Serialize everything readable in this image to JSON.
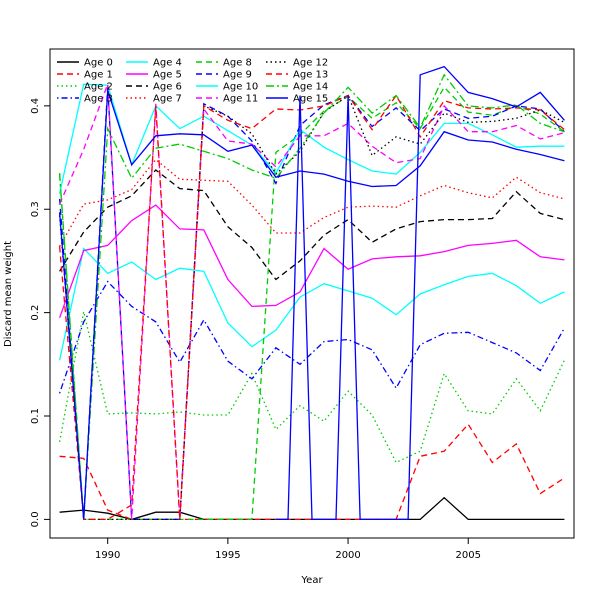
{
  "chart_data": {
    "type": "line",
    "title": "",
    "xlabel": "Year",
    "ylabel": "Discard mean weight",
    "xlim": [
      1987.6,
      2009.4
    ],
    "ylim": [
      -0.018,
      0.455
    ],
    "x_ticks": [
      1990,
      1995,
      2000,
      2005
    ],
    "y_ticks": [
      0.0,
      0.1,
      0.2,
      0.3,
      0.4
    ],
    "y_tick_labels": [
      "0.0",
      "0.1",
      "0.2",
      "0.3",
      "0.4"
    ],
    "grid": false,
    "legend_position": "top-left",
    "x": [
      1988,
      1989,
      1990,
      1991,
      1992,
      1993,
      1994,
      1995,
      1996,
      1997,
      1998,
      1999,
      2000,
      2001,
      2002,
      2003,
      2004,
      2005,
      2006,
      2007,
      2008,
      2009
    ],
    "series": [
      {
        "name": "Age 0",
        "color": "#000000",
        "dash": "solid",
        "values": [
          0.007,
          0.009,
          0.006,
          0.0,
          0.007,
          0.007,
          0.0,
          0.0,
          0.0,
          0.0,
          0.0,
          0.0,
          0.0,
          0.0,
          0.0,
          0.0,
          0.021,
          0.0,
          0.0,
          0.0,
          0.0,
          0.0
        ]
      },
      {
        "name": "Age 1",
        "color": "#ff0000",
        "dash": "dashed",
        "values": [
          0.061,
          0.059,
          0.009,
          0.0,
          0.0,
          0.0,
          0.0,
          0.0,
          0.0,
          0.0,
          0.0,
          0.0,
          0.0,
          0.0,
          0.0,
          0.061,
          0.066,
          0.092,
          0.055,
          0.073,
          0.025,
          0.04
        ]
      },
      {
        "name": "Age 2",
        "color": "#00cd00",
        "dash": "dotted",
        "values": [
          0.075,
          0.201,
          0.102,
          0.103,
          0.102,
          0.104,
          0.101,
          0.101,
          0.141,
          0.087,
          0.11,
          0.095,
          0.124,
          0.101,
          0.055,
          0.066,
          0.141,
          0.105,
          0.102,
          0.136,
          0.105,
          0.154
        ]
      },
      {
        "name": "Age 3",
        "color": "#0000ff",
        "dash": "dotdash",
        "values": [
          0.122,
          0.191,
          0.23,
          0.206,
          0.191,
          0.152,
          0.193,
          0.153,
          0.136,
          0.166,
          0.15,
          0.172,
          0.174,
          0.164,
          0.127,
          0.169,
          0.18,
          0.181,
          0.171,
          0.161,
          0.144,
          0.185
        ]
      },
      {
        "name": "Age 4",
        "color": "#00ffff",
        "dash": "solid",
        "values": [
          0.154,
          0.262,
          0.238,
          0.249,
          0.232,
          0.243,
          0.24,
          0.19,
          0.167,
          0.183,
          0.215,
          0.228,
          0.221,
          0.214,
          0.198,
          0.218,
          0.227,
          0.235,
          0.238,
          0.226,
          0.209,
          0.22
        ]
      },
      {
        "name": "Age 5",
        "color": "#ff00ff",
        "dash": "solid",
        "values": [
          0.195,
          0.26,
          0.265,
          0.289,
          0.304,
          0.281,
          0.28,
          0.232,
          0.206,
          0.207,
          0.22,
          0.262,
          0.242,
          0.252,
          0.254,
          0.255,
          0.259,
          0.265,
          0.267,
          0.27,
          0.254,
          0.251
        ]
      },
      {
        "name": "Age 6",
        "color": "#000000",
        "dash": "dashed",
        "values": [
          0.24,
          0.278,
          0.302,
          0.313,
          0.338,
          0.32,
          0.318,
          0.283,
          0.263,
          0.232,
          0.25,
          0.275,
          0.29,
          0.268,
          0.281,
          0.288,
          0.29,
          0.29,
          0.291,
          0.317,
          0.296,
          0.29
        ]
      },
      {
        "name": "Age 7",
        "color": "#ff0000",
        "dash": "dotted",
        "values": [
          0.264,
          0.305,
          0.309,
          0.319,
          0.348,
          0.329,
          0.328,
          0.327,
          0.304,
          0.277,
          0.277,
          0.292,
          0.302,
          0.303,
          0.302,
          0.313,
          0.323,
          0.316,
          0.311,
          0.331,
          0.316,
          0.31
        ]
      },
      {
        "name": "Age 8",
        "color": "#00cd00",
        "dash": "dashed",
        "values": [
          0.334,
          0.0,
          0.0,
          0.0,
          0.0,
          0.0,
          0.0,
          0.0,
          0.0,
          0.355,
          0.372,
          0.395,
          0.409,
          0.388,
          0.403,
          0.378,
          0.418,
          0.394,
          0.391,
          0.4,
          0.392,
          0.375
        ]
      },
      {
        "name": "Age 9",
        "color": "#0000ff",
        "dash": "dashed",
        "values": [
          0.31,
          0.0,
          0.419,
          0.0,
          0.0,
          0.0,
          0.402,
          0.39,
          0.366,
          0.325,
          0.381,
          0.401,
          0.41,
          0.38,
          0.398,
          0.376,
          0.397,
          0.388,
          0.39,
          0.4,
          0.397,
          0.375
        ]
      },
      {
        "name": "Age 10",
        "color": "#00ffff",
        "dash": "solid",
        "values": [
          0.315,
          0.421,
          0.42,
          0.343,
          0.4,
          0.378,
          0.39,
          0.376,
          0.362,
          0.335,
          0.377,
          0.36,
          0.348,
          0.337,
          0.334,
          0.355,
          0.383,
          0.383,
          0.372,
          0.36,
          0.361,
          0.361
        ]
      },
      {
        "name": "Age 11",
        "color": "#ff00ff",
        "dash": "dashed",
        "values": [
          0.305,
          0.358,
          0.421,
          0.0,
          0.402,
          0.0,
          0.397,
          0.366,
          0.363,
          0.341,
          0.371,
          0.371,
          0.383,
          0.361,
          0.345,
          0.349,
          0.4,
          0.375,
          0.375,
          0.381,
          0.368,
          0.374
        ]
      },
      {
        "name": "Age 12",
        "color": "#000000",
        "dash": "dotted",
        "values": [
          0.294,
          0.0,
          0.0,
          0.0,
          0.0,
          0.0,
          0.4,
          0.39,
          0.373,
          0.334,
          0.356,
          0.394,
          0.41,
          0.352,
          0.37,
          0.363,
          0.393,
          0.384,
          0.385,
          0.388,
          0.396,
          0.384
        ]
      },
      {
        "name": "Age 13",
        "color": "#ff0000",
        "dash": "dashed",
        "values": [
          0.264,
          0.0,
          0.0,
          0.014,
          0.4,
          0.0,
          0.4,
          0.386,
          0.378,
          0.397,
          0.396,
          0.4,
          0.41,
          0.377,
          0.41,
          0.37,
          0.405,
          0.398,
          0.397,
          0.398,
          0.396,
          0.377
        ]
      },
      {
        "name": "Age 14",
        "color": "#00cd00",
        "dash": "dashdot",
        "values": [
          0.335,
          0.0,
          0.378,
          0.33,
          0.359,
          0.363,
          0.356,
          0.349,
          0.338,
          0.33,
          0.359,
          0.393,
          0.418,
          0.393,
          0.41,
          0.379,
          0.43,
          0.4,
          0.398,
          0.401,
          0.383,
          0.375
        ]
      },
      {
        "name": "Age 15",
        "color": "#0000ff",
        "dash": "solid",
        "values": [
          0.297,
          0.0,
          0.415,
          0.343,
          0.371,
          0.373,
          0.372,
          0.356,
          0.362,
          0.331,
          0.337,
          0.334,
          0.327,
          0.322,
          0.323,
          0.342,
          0.375,
          0.367,
          0.365,
          0.358,
          0.353,
          0.347
        ]
      }
    ],
    "extra_series": [
      {
        "name": "",
        "color": "#0000ff",
        "dash": "solid",
        "x": [
          1997,
          1997.5,
          1998,
          1998.5,
          1999,
          1999.5,
          2000,
          2000.5,
          2001,
          2002,
          2002.5,
          2003,
          2004,
          2005,
          2006,
          2007,
          2008,
          2009
        ],
        "values": [
          0.0,
          0.0,
          0.41,
          0.0,
          0.0,
          0.0,
          0.41,
          0.0,
          0.0,
          0.0,
          0.0,
          0.43,
          0.438,
          0.413,
          0.407,
          0.399,
          0.413,
          0.386
        ]
      }
    ]
  }
}
